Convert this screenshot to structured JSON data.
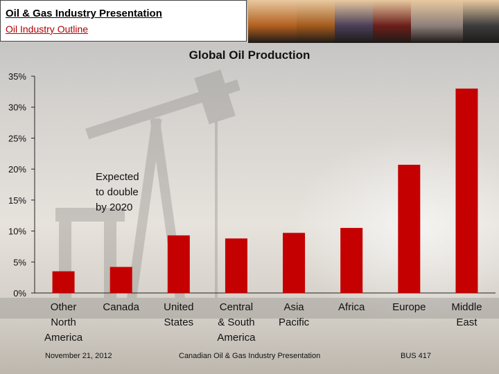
{
  "header": {
    "title": "Oil & Gas Industry Presentation",
    "subtitle": "Oil Industry Outline"
  },
  "photos": [
    {
      "name": "refinery-towers-photo",
      "color": "#b25f1e"
    },
    {
      "name": "pumpjack-sunset-photo",
      "color": "#a35a1c"
    },
    {
      "name": "refinery-night-photo",
      "color": "#4a3f58"
    },
    {
      "name": "oil-worker-photo",
      "color": "#6b1f1a"
    },
    {
      "name": "oil-barrels-photo",
      "color": "#8e7f7a"
    },
    {
      "name": "fuel-nozzle-photo",
      "color": "#3c3c3c"
    }
  ],
  "chart_data": {
    "type": "bar",
    "title": "Global Oil Production",
    "categories": [
      "Other\nNorth\nAmerica",
      "Canada",
      "United\nStates",
      "Central\n& South\nAmerica",
      "Asia\nPacific",
      "Africa",
      "Europe",
      "Middle\nEast"
    ],
    "values": [
      3.5,
      4.2,
      9.3,
      8.8,
      9.7,
      10.5,
      20.7,
      33.0
    ],
    "ylim": [
      0,
      35
    ],
    "yticks": [
      0,
      5,
      10,
      15,
      20,
      25,
      30,
      35
    ],
    "ytick_labels": [
      "0%",
      "5%",
      "10%",
      "15%",
      "20%",
      "25%",
      "30%",
      "35%"
    ],
    "bar_color": "#c40000",
    "gridlines": false,
    "annotation": "Expected\nto double\nby 2020"
  },
  "footer": {
    "date": "November 21, 2012",
    "center": "Canadian Oil & Gas Industry Presentation",
    "course": "BUS 417"
  }
}
